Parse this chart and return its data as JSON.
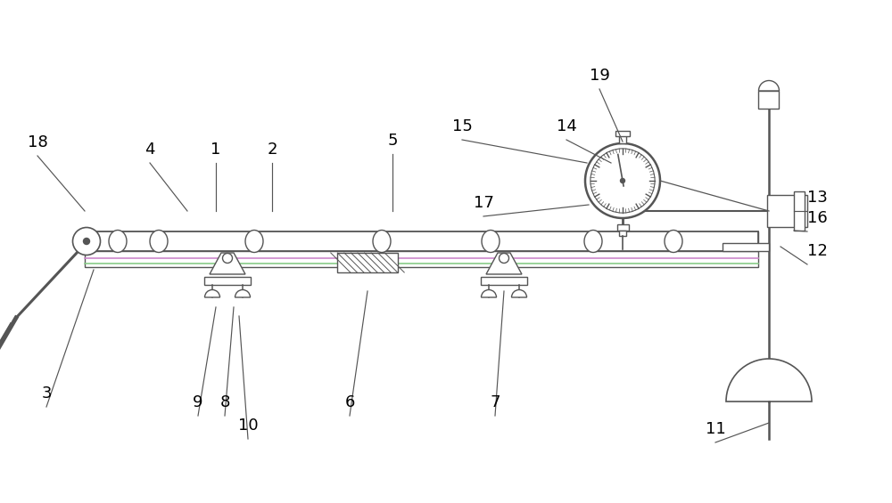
{
  "bg_color": "#ffffff",
  "line_color": "#555555",
  "label_color": "#000000",
  "label_fontsize": 13,
  "fig_width": 10.0,
  "fig_height": 5.65
}
